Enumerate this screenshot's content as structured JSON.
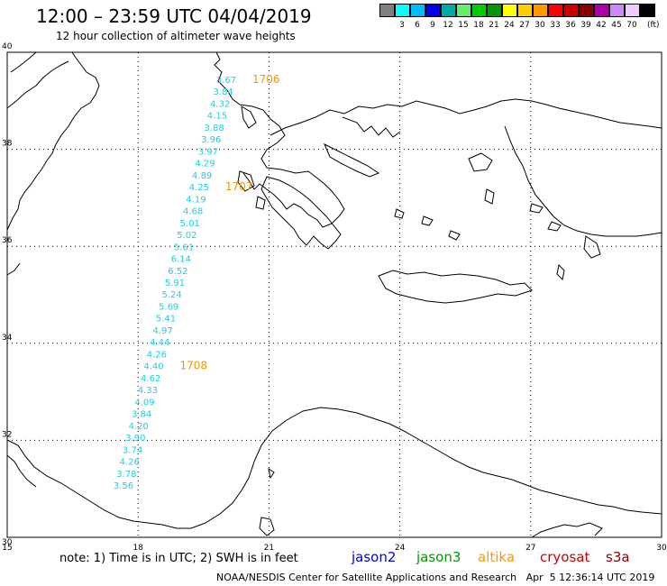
{
  "header": {
    "title": "12:00 – 23:59 UTC 04/04/2019",
    "subtitle": "12 hour collection of altimeter wave heights"
  },
  "legend": {
    "unit": "(ft)",
    "colors": [
      {
        "color": "#808080",
        "label": ""
      },
      {
        "color": "#00ffff",
        "label": "3"
      },
      {
        "color": "#00bbff",
        "label": "6"
      },
      {
        "color": "#0000ee",
        "label": "9"
      },
      {
        "color": "#00aaaa",
        "label": "12"
      },
      {
        "color": "#66ee66",
        "label": "15"
      },
      {
        "color": "#00cc00",
        "label": "18"
      },
      {
        "color": "#009900",
        "label": "21"
      },
      {
        "color": "#ffff00",
        "label": "24"
      },
      {
        "color": "#ffcc00",
        "label": "27"
      },
      {
        "color": "#ff9900",
        "label": "30"
      },
      {
        "color": "#ff0000",
        "label": "33"
      },
      {
        "color": "#cc0000",
        "label": "36"
      },
      {
        "color": "#880000",
        "label": "39"
      },
      {
        "color": "#aa00aa",
        "label": "42"
      },
      {
        "color": "#cc88ff",
        "label": "45"
      },
      {
        "color": "#eeccff",
        "label": "70"
      },
      {
        "color": "#000000",
        "label": ""
      }
    ]
  },
  "axes": {
    "lon_labels": [
      "15",
      "18",
      "21",
      "24",
      "27",
      "30"
    ],
    "lat_labels": [
      "40",
      "38",
      "36",
      "34",
      "32",
      "30"
    ],
    "lon_range": [
      15,
      30
    ],
    "lat_range": [
      30,
      40
    ]
  },
  "track": {
    "readings": [
      "3.67",
      "3.84",
      "4.32",
      "4.15",
      "3.88",
      "3.96",
      "3.97",
      "4.29",
      "4.89",
      "4.25",
      "4.19",
      "4.68",
      "5.01",
      "5.02",
      "5.61",
      "6.14",
      "6.52",
      "5.91",
      "5.24",
      "5.69",
      "5.41",
      "4.97",
      "4.44",
      "4.26",
      "4.40",
      "4.62",
      "4.33",
      "4.09",
      "3.84",
      "4.20",
      "3.90",
      "3.74",
      "4.26",
      "3.78",
      "3.56"
    ],
    "times": [
      {
        "label": "1706",
        "index": 0
      },
      {
        "label": "1707",
        "index": 9
      },
      {
        "label": "1708",
        "index": 24
      }
    ]
  },
  "footer": {
    "note": "note:  1) Time is in UTC;  2) SWH is in feet",
    "satellites": [
      {
        "name": "jason2",
        "color": "#0000dd"
      },
      {
        "name": "jason3",
        "color": "#009900"
      },
      {
        "name": "altika",
        "color": "#ff9900"
      },
      {
        "name": "cryosat",
        "color": "#cc0000"
      },
      {
        "name": "s3a",
        "color": "#880000"
      }
    ],
    "credit": "NOAA/NESDIS Center for Satellite Applications and Research   Apr  5 12:36:14 UTC 2019"
  }
}
